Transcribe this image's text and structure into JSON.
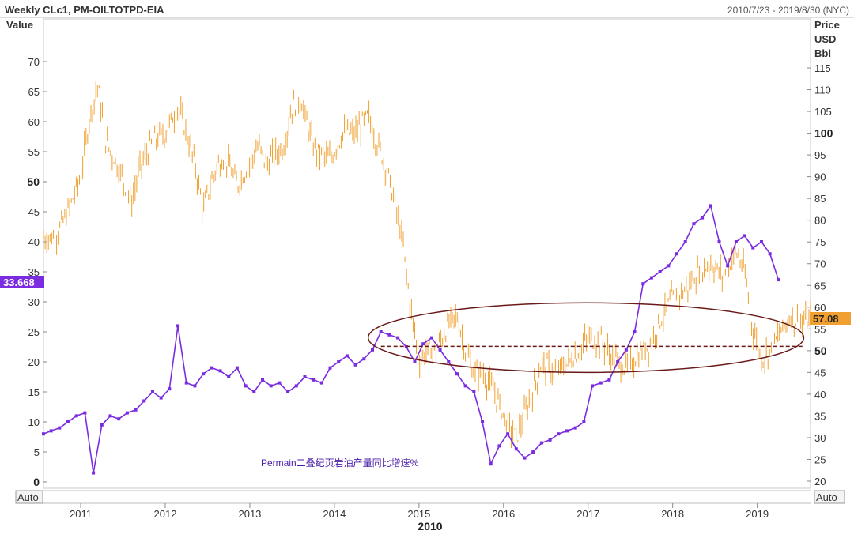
{
  "header": {
    "title": "Weekly CLc1, PM-OILTOTPD-EIA",
    "range": "2010/7/23 - 2019/8/30 (NYC)"
  },
  "left_axis_label": "Value",
  "right_axis_label_lines": [
    "Price",
    "USD",
    "Bbl"
  ],
  "auto_label": "Auto",
  "year_caption": "2010",
  "annotation": "Permain二叠纪页岩油产量同比增速%",
  "left_tag": "33.668",
  "right_tag": "57.08",
  "colors": {
    "oil": "#f0a030",
    "growth": "#7b2be0",
    "tag_left_bg": "#7b2be0",
    "tag_right_bg": "#f0a030",
    "ellipse": "#6b1a1a",
    "ref_line": "#6b1a1a"
  },
  "chart_data": {
    "type": "line",
    "x_range": [
      2010.56,
      2019.63
    ],
    "x_ticks": [
      "2011",
      "2012",
      "2013",
      "2014",
      "2015",
      "2016",
      "2017",
      "2018",
      "2019"
    ],
    "left_axis": {
      "label": "Value",
      "range": [
        0,
        75
      ],
      "ticks": [
        0,
        5,
        10,
        15,
        20,
        25,
        30,
        35,
        40,
        45,
        50,
        55,
        60,
        65,
        70
      ],
      "bold_ticks": [
        0,
        50
      ]
    },
    "right_axis": {
      "label": "Price USD Bbl",
      "range": [
        20,
        115
      ],
      "ticks": [
        20,
        25,
        30,
        35,
        40,
        45,
        50,
        55,
        60,
        65,
        70,
        75,
        80,
        85,
        90,
        95,
        100,
        105,
        110,
        115
      ],
      "bold_ticks": [
        50,
        100
      ]
    },
    "series": [
      {
        "name": "CLc1",
        "axis": "right",
        "style": "ohlc-bars",
        "x": [
          2010.56,
          2010.7,
          2010.85,
          2011.0,
          2011.1,
          2011.2,
          2011.3,
          2011.45,
          2011.6,
          2011.7,
          2011.85,
          2012.0,
          2012.15,
          2012.25,
          2012.35,
          2012.45,
          2012.5,
          2012.6,
          2012.7,
          2012.85,
          2013.0,
          2013.1,
          2013.2,
          2013.3,
          2013.4,
          2013.5,
          2013.6,
          2013.65,
          2013.75,
          2013.85,
          2013.95,
          2014.1,
          2014.25,
          2014.4,
          2014.5,
          2014.6,
          2014.7,
          2014.8,
          2014.9,
          2015.0,
          2015.1,
          2015.2,
          2015.35,
          2015.45,
          2015.55,
          2015.65,
          2015.75,
          2015.9,
          2016.05,
          2016.15,
          2016.3,
          2016.45,
          2016.6,
          2016.75,
          2016.9,
          2017.0,
          2017.15,
          2017.3,
          2017.45,
          2017.6,
          2017.75,
          2017.85,
          2018.0,
          2018.15,
          2018.3,
          2018.45,
          2018.6,
          2018.75,
          2018.85,
          2018.95,
          2019.05,
          2019.15,
          2019.3,
          2019.4,
          2019.5,
          2019.63
        ],
        "values": [
          76,
          76,
          82,
          90,
          103,
          111,
          98,
          92,
          84,
          92,
          98,
          100,
          106,
          100,
          93,
          82,
          86,
          92,
          95,
          88,
          93,
          97,
          93,
          95,
          97,
          106,
          108,
          104,
          97,
          95,
          94,
          100,
          100,
          104,
          98,
          93,
          85,
          76,
          60,
          48,
          50,
          50,
          56,
          58,
          50,
          45,
          45,
          40,
          33,
          30,
          38,
          47,
          45,
          47,
          50,
          53,
          52,
          48,
          46,
          49,
          52,
          57,
          62,
          64,
          68,
          70,
          67,
          73,
          68,
          55,
          48,
          50,
          55,
          58,
          56,
          57.08
        ]
      },
      {
        "name": "PM-OILTOTPD-EIA",
        "axis": "left",
        "style": "line-markers",
        "x": [
          2010.56,
          2010.65,
          2010.75,
          2010.85,
          2010.95,
          2011.05,
          2011.15,
          2011.25,
          2011.35,
          2011.45,
          2011.55,
          2011.65,
          2011.75,
          2011.85,
          2011.95,
          2012.05,
          2012.15,
          2012.25,
          2012.35,
          2012.45,
          2012.55,
          2012.65,
          2012.75,
          2012.85,
          2012.95,
          2013.05,
          2013.15,
          2013.25,
          2013.35,
          2013.45,
          2013.55,
          2013.65,
          2013.75,
          2013.85,
          2013.95,
          2014.05,
          2014.15,
          2014.25,
          2014.35,
          2014.45,
          2014.55,
          2014.65,
          2014.75,
          2014.85,
          2014.95,
          2015.05,
          2015.15,
          2015.25,
          2015.35,
          2015.45,
          2015.55,
          2015.65,
          2015.75,
          2015.85,
          2015.95,
          2016.05,
          2016.15,
          2016.25,
          2016.35,
          2016.45,
          2016.55,
          2016.65,
          2016.75,
          2016.85,
          2016.95,
          2017.05,
          2017.15,
          2017.25,
          2017.35,
          2017.45,
          2017.55,
          2017.65,
          2017.75,
          2017.85,
          2017.95,
          2018.05,
          2018.15,
          2018.25,
          2018.35,
          2018.45,
          2018.55,
          2018.65,
          2018.75,
          2018.85,
          2018.95,
          2019.05,
          2019.15,
          2019.25
        ],
        "values": [
          8,
          8.5,
          9,
          10,
          11,
          11.5,
          1.5,
          9.5,
          11,
          10.5,
          11.5,
          12,
          13.5,
          15,
          14,
          15.5,
          26,
          16.5,
          16,
          18,
          19,
          18.5,
          17.5,
          19,
          16,
          15,
          17,
          16,
          16.5,
          15,
          16,
          17.5,
          17,
          16.5,
          19,
          20,
          21,
          19.5,
          20.5,
          22,
          25,
          24.5,
          24,
          22.5,
          20,
          23,
          24,
          22,
          20,
          18,
          16,
          15,
          10,
          3,
          6,
          8,
          5.5,
          4,
          5,
          6.5,
          7,
          8,
          8.5,
          9,
          10,
          16,
          16.5,
          17,
          20,
          22,
          25,
          33,
          34,
          35,
          36,
          38,
          40,
          43,
          44,
          46,
          40,
          36,
          40,
          41,
          39,
          40,
          38,
          33.668
        ]
      }
    ],
    "annotations": [
      "ellipse around 2014.5–2019.5 near the USD 50 level",
      "dashed horizontal line at USD 51"
    ],
    "legend": "none",
    "grid": false
  }
}
